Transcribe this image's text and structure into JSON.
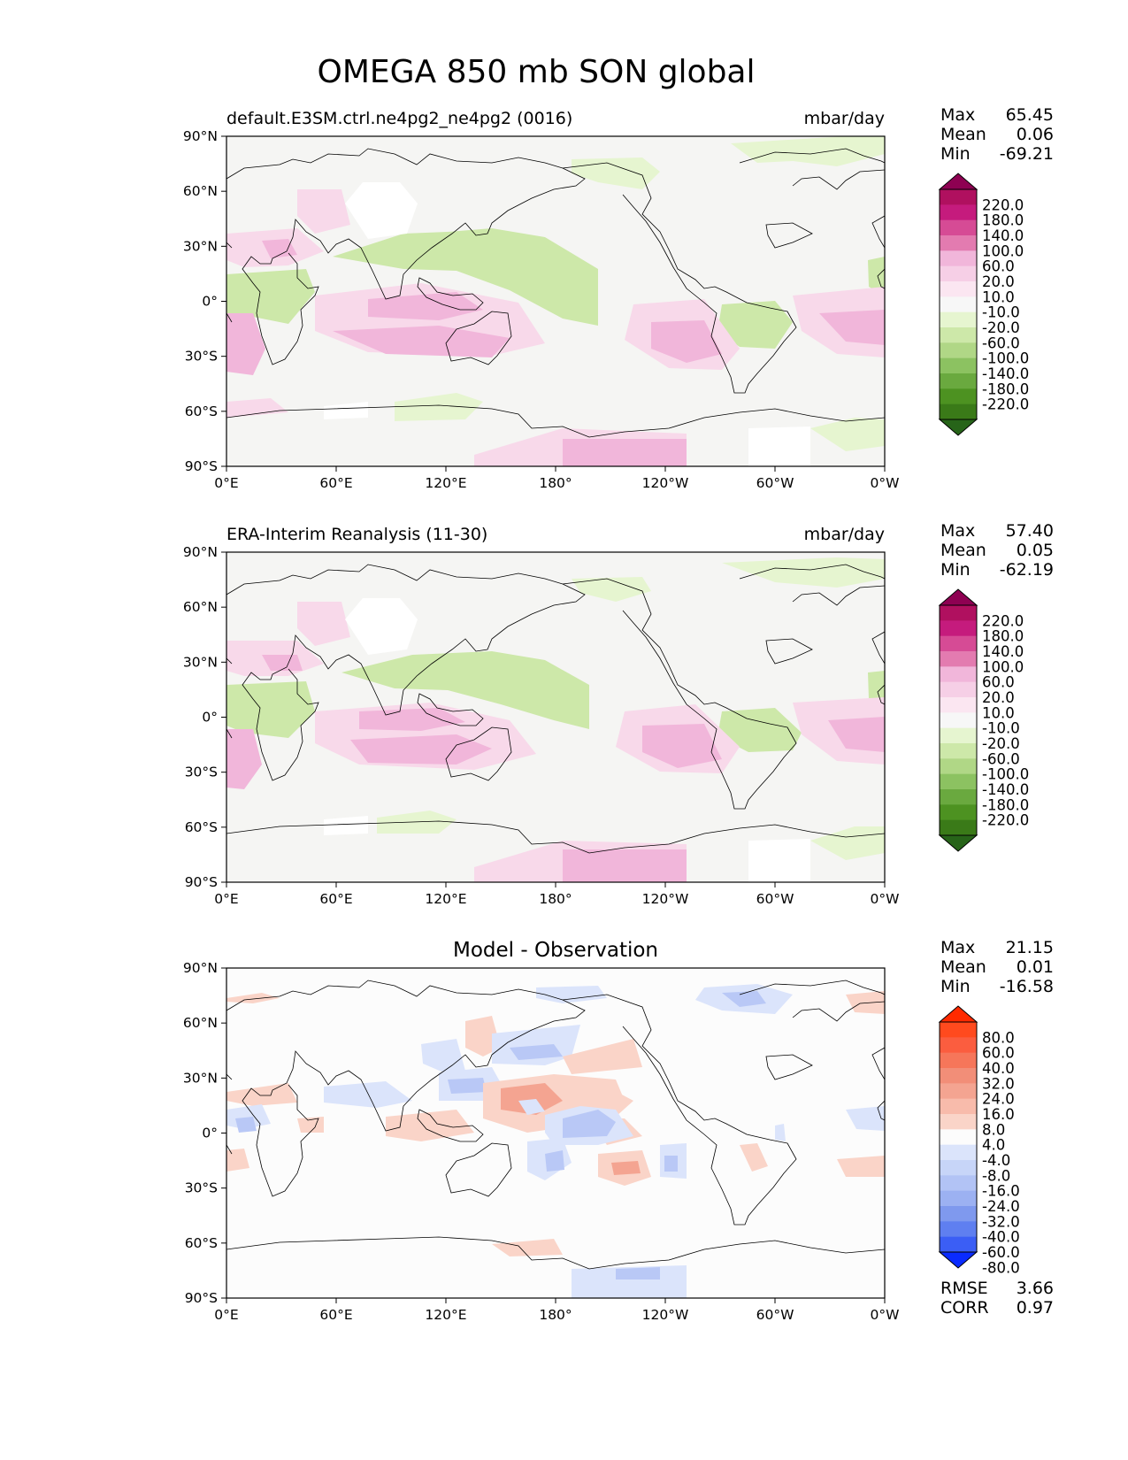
{
  "figure_title": "OMEGA 850 mb SON global",
  "x_ticks": [
    "0°E",
    "60°E",
    "120°E",
    "180°",
    "120°W",
    "60°W",
    "0°W"
  ],
  "y_ticks": [
    "90°N",
    "60°N",
    "30°N",
    "0°",
    "30°S",
    "60°S",
    "90°S"
  ],
  "colors": {
    "land_gray": "#f5f5f3",
    "pg_light_pink": "#f8d9ea",
    "pg_pink": "#f1b6da",
    "pg_light_green": "#e6f5d0",
    "pg_green": "#cde8a9",
    "diff_light_red": "#fad4c8",
    "diff_red": "#f4a491",
    "diff_light_blue": "#dbe4fb",
    "diff_blue": "#b9c8f6",
    "diff_white": "#fcfcfc"
  },
  "panels": [
    {
      "title": "default.E3SM.ctrl.ne4pg2_ne4pg2 (0016)",
      "units": "mbar/day",
      "stats": {
        "max_label": "Max",
        "max": "65.45",
        "mean_label": "Mean",
        "mean": "0.06",
        "min_label": "Min",
        "min": "-69.21"
      },
      "colorbar": {
        "levels": [
          "220.0",
          "180.0",
          "140.0",
          "100.0",
          "60.0",
          "20.0",
          "10.0",
          "-10.0",
          "-20.0",
          "-60.0",
          "-100.0",
          "-140.0",
          "-180.0",
          "-220.0"
        ],
        "colors": [
          "#8e0152",
          "#b0105f",
          "#c51b7d",
          "#d64b95",
          "#e37bb0",
          "#f1b6da",
          "#f6cfe6",
          "#fbe6f1",
          "#f7f7f7",
          "#e6f5d0",
          "#cde8a9",
          "#b0d786",
          "#8cc261",
          "#6aa93f",
          "#4d9221",
          "#3a7a18",
          "#276419"
        ]
      }
    },
    {
      "title": "ERA-Interim Reanalysis (11-30)",
      "units": "mbar/day",
      "stats": {
        "max_label": "Max",
        "max": "57.40",
        "mean_label": "Mean",
        "mean": "0.05",
        "min_label": "Min",
        "min": "-62.19"
      },
      "colorbar": {
        "levels": [
          "220.0",
          "180.0",
          "140.0",
          "100.0",
          "60.0",
          "20.0",
          "10.0",
          "-10.0",
          "-20.0",
          "-60.0",
          "-100.0",
          "-140.0",
          "-180.0",
          "-220.0"
        ],
        "colors": [
          "#8e0152",
          "#b0105f",
          "#c51b7d",
          "#d64b95",
          "#e37bb0",
          "#f1b6da",
          "#f6cfe6",
          "#fbe6f1",
          "#f7f7f7",
          "#e6f5d0",
          "#cde8a9",
          "#b0d786",
          "#8cc261",
          "#6aa93f",
          "#4d9221",
          "#3a7a18",
          "#276419"
        ]
      }
    },
    {
      "title": "Model - Observation",
      "units": "",
      "stats": {
        "max_label": "Max",
        "max": "21.15",
        "mean_label": "Mean",
        "mean": "0.01",
        "min_label": "Min",
        "min": "-16.58"
      },
      "colorbar": {
        "levels": [
          "80.0",
          "60.0",
          "40.0",
          "32.0",
          "24.0",
          "16.0",
          "8.0",
          "4.0",
          "-4.0",
          "-8.0",
          "-16.0",
          "-24.0",
          "-32.0",
          "-40.0",
          "-60.0",
          "-80.0"
        ],
        "colors": [
          "#ff2a00",
          "#ff4a1e",
          "#fb5d3f",
          "#f6765a",
          "#f28e78",
          "#f4a491",
          "#f8bbab",
          "#fad4c8",
          "#fcfcfc",
          "#dbe4fb",
          "#c7d5f8",
          "#b2c3f5",
          "#9cb1f2",
          "#7f99ee",
          "#5f7ff0",
          "#3b5ef5",
          "#0a2bff"
        ]
      },
      "metrics": {
        "rmse_label": "RMSE",
        "rmse": "3.66",
        "corr_label": "CORR",
        "corr": "0.97"
      }
    }
  ]
}
